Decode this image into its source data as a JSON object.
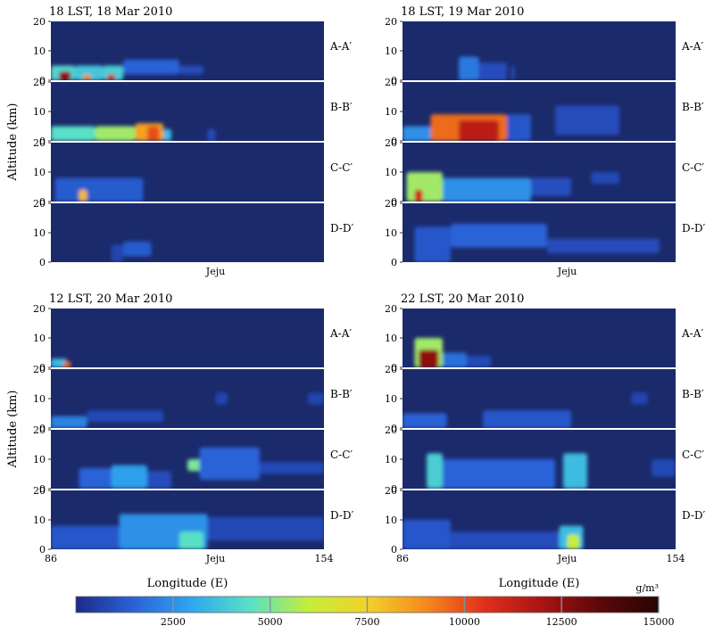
{
  "chart_data": {
    "type": "heatmap",
    "unit": "g/m³",
    "colorbar": {
      "ticks": [
        "2500",
        "5000",
        "7500",
        "10000",
        "12500",
        "15000"
      ],
      "range": [
        0,
        15000
      ],
      "colors": [
        "#1e2a8c",
        "#2a62d8",
        "#2fa8ee",
        "#59e0c6",
        "#c6ee3a",
        "#f2d22a",
        "#f48a1e",
        "#e0301c",
        "#a81414",
        "#5a0808",
        "#280404"
      ]
    },
    "x_axis": {
      "label": "Longitude (E)",
      "range": [
        86,
        154
      ],
      "ticks": [
        "86",
        "154"
      ],
      "annotation": "Jeju",
      "annotation_lon": 127
    },
    "y_axis": {
      "label": "Altitude (km)",
      "range": [
        0,
        20
      ],
      "ticks": [
        "0",
        "10",
        "20"
      ]
    },
    "background_color": "#1b2a6b",
    "cross_sections": [
      "A-A′",
      "B-B′",
      "C-C′",
      "D-D′"
    ],
    "panels": [
      {
        "title": "18 LST, 18 Mar 2010",
        "show_lon_ticks": false,
        "show_xlabel": false,
        "show_ylabel": true,
        "strips": [
          [
            {
              "lon": [
                86,
                92
              ],
              "alt": [
                0,
                5
              ],
              "conc": 4200
            },
            {
              "lon": [
                88,
                91
              ],
              "alt": [
                0,
                3
              ],
              "conc": 12500
            },
            {
              "lon": [
                92,
                99
              ],
              "alt": [
                0,
                5
              ],
              "conc": 3800
            },
            {
              "lon": [
                94,
                96
              ],
              "alt": [
                0,
                2
              ],
              "conc": 9000
            },
            {
              "lon": [
                99,
                104
              ],
              "alt": [
                0,
                5
              ],
              "conc": 4000
            },
            {
              "lon": [
                100,
                102
              ],
              "alt": [
                0,
                2
              ],
              "conc": 11000
            },
            {
              "lon": [
                104,
                118
              ],
              "alt": [
                2,
                7
              ],
              "conc": 1500
            },
            {
              "lon": [
                118,
                124
              ],
              "alt": [
                2,
                5
              ],
              "conc": 900
            }
          ],
          [
            {
              "lon": [
                86,
                97
              ],
              "alt": [
                0,
                5
              ],
              "conc": 4500
            },
            {
              "lon": [
                97,
                107
              ],
              "alt": [
                0,
                5
              ],
              "conc": 5500
            },
            {
              "lon": [
                107,
                114
              ],
              "alt": [
                0,
                6
              ],
              "conc": 8500
            },
            {
              "lon": [
                110,
                113
              ],
              "alt": [
                0,
                5
              ],
              "conc": 10000
            },
            {
              "lon": [
                114,
                116
              ],
              "alt": [
                0,
                4
              ],
              "conc": 3500
            },
            {
              "lon": [
                125,
                127
              ],
              "alt": [
                0,
                4
              ],
              "conc": 900
            }
          ],
          [
            {
              "lon": [
                87,
                109
              ],
              "alt": [
                0,
                8
              ],
              "conc": 1300
            },
            {
              "lon": [
                93,
                95
              ],
              "alt": [
                0,
                4
              ],
              "conc": 8000
            }
          ],
          [
            {
              "lon": [
                101,
                104
              ],
              "alt": [
                0,
                6
              ],
              "conc": 700
            },
            {
              "lon": [
                104,
                111
              ],
              "alt": [
                2,
                7
              ],
              "conc": 1300
            }
          ]
        ]
      },
      {
        "title": "18 LST, 19 Mar 2010",
        "show_lon_ticks": false,
        "show_xlabel": false,
        "show_ylabel": false,
        "strips": [
          [
            {
              "lon": [
                100,
                105
              ],
              "alt": [
                0,
                8
              ],
              "conc": 2000
            },
            {
              "lon": [
                105,
                112
              ],
              "alt": [
                0,
                6
              ],
              "conc": 900
            },
            {
              "lon": [
                113,
                114
              ],
              "alt": [
                0,
                5
              ],
              "conc": 700
            }
          ],
          [
            {
              "lon": [
                86,
                93
              ],
              "alt": [
                0,
                5
              ],
              "conc": 2500
            },
            {
              "lon": [
                93,
                112
              ],
              "alt": [
                0,
                9
              ],
              "conc": 9500
            },
            {
              "lon": [
                100,
                110
              ],
              "alt": [
                0,
                7
              ],
              "conc": 11500
            },
            {
              "lon": [
                112,
                118
              ],
              "alt": [
                0,
                9
              ],
              "conc": 1200
            },
            {
              "lon": [
                124,
                140
              ],
              "alt": [
                2,
                12
              ],
              "conc": 900
            }
          ],
          [
            {
              "lon": [
                87,
                96
              ],
              "alt": [
                0,
                10
              ],
              "conc": 5500
            },
            {
              "lon": [
                89,
                91
              ],
              "alt": [
                0,
                4
              ],
              "conc": 11000
            },
            {
              "lon": [
                96,
                118
              ],
              "alt": [
                0,
                8
              ],
              "conc": 2500
            },
            {
              "lon": [
                118,
                128
              ],
              "alt": [
                2,
                8
              ],
              "conc": 1000
            },
            {
              "lon": [
                133,
                140
              ],
              "alt": [
                6,
                10
              ],
              "conc": 800
            }
          ],
          [
            {
              "lon": [
                89,
                98
              ],
              "alt": [
                0,
                12
              ],
              "conc": 1200
            },
            {
              "lon": [
                98,
                122
              ],
              "alt": [
                5,
                13
              ],
              "conc": 1500
            },
            {
              "lon": [
                122,
                150
              ],
              "alt": [
                3,
                8
              ],
              "conc": 900
            }
          ]
        ]
      },
      {
        "title": "12 LST, 20 Mar 2010",
        "show_lon_ticks": true,
        "show_xlabel": true,
        "show_ylabel": true,
        "strips": [
          [
            {
              "lon": [
                86,
                90
              ],
              "alt": [
                0,
                3
              ],
              "conc": 3500
            },
            {
              "lon": [
                89,
                91
              ],
              "alt": [
                0,
                2
              ],
              "conc": 9500
            }
          ],
          [
            {
              "lon": [
                86,
                95
              ],
              "alt": [
                0,
                4
              ],
              "conc": 2200
            },
            {
              "lon": [
                95,
                114
              ],
              "alt": [
                2,
                6
              ],
              "conc": 800
            },
            {
              "lon": [
                127,
                130
              ],
              "alt": [
                8,
                12
              ],
              "conc": 700
            },
            {
              "lon": [
                150,
                154
              ],
              "alt": [
                8,
                12
              ],
              "conc": 700
            }
          ],
          [
            {
              "lon": [
                93,
                101
              ],
              "alt": [
                0,
                7
              ],
              "conc": 1500
            },
            {
              "lon": [
                101,
                110
              ],
              "alt": [
                0,
                8
              ],
              "conc": 2800
            },
            {
              "lon": [
                110,
                116
              ],
              "alt": [
                0,
                6
              ],
              "conc": 900
            },
            {
              "lon": [
                120,
                126
              ],
              "alt": [
                6,
                10
              ],
              "conc": 5000
            },
            {
              "lon": [
                123,
                138
              ],
              "alt": [
                3,
                14
              ],
              "conc": 1500
            },
            {
              "lon": [
                138,
                154
              ],
              "alt": [
                5,
                9
              ],
              "conc": 800
            }
          ],
          [
            {
              "lon": [
                86,
                103
              ],
              "alt": [
                0,
                8
              ],
              "conc": 1200
            },
            {
              "lon": [
                103,
                125
              ],
              "alt": [
                0,
                12
              ],
              "conc": 2500
            },
            {
              "lon": [
                118,
                124
              ],
              "alt": [
                0,
                6
              ],
              "conc": 4500
            },
            {
              "lon": [
                125,
                154
              ],
              "alt": [
                3,
                11
              ],
              "conc": 800
            }
          ]
        ]
      },
      {
        "title": "22 LST, 20 Mar 2010",
        "show_lon_ticks": true,
        "show_xlabel": true,
        "show_ylabel": false,
        "strips": [
          [
            {
              "lon": [
                89,
                96
              ],
              "alt": [
                0,
                10
              ],
              "conc": 5500
            },
            {
              "lon": [
                90,
                95
              ],
              "alt": [
                0,
                6
              ],
              "conc": 12500
            },
            {
              "lon": [
                96,
                102
              ],
              "alt": [
                0,
                5
              ],
              "conc": 1800
            },
            {
              "lon": [
                102,
                108
              ],
              "alt": [
                0,
                4
              ],
              "conc": 800
            }
          ],
          [
            {
              "lon": [
                86,
                97
              ],
              "alt": [
                0,
                5
              ],
              "conc": 1500
            },
            {
              "lon": [
                106,
                128
              ],
              "alt": [
                0,
                6
              ],
              "conc": 1200
            },
            {
              "lon": [
                143,
                147
              ],
              "alt": [
                8,
                12
              ],
              "conc": 700
            }
          ],
          [
            {
              "lon": [
                92,
                96
              ],
              "alt": [
                0,
                12
              ],
              "conc": 4000
            },
            {
              "lon": [
                96,
                124
              ],
              "alt": [
                0,
                10
              ],
              "conc": 1500
            },
            {
              "lon": [
                126,
                132
              ],
              "alt": [
                0,
                12
              ],
              "conc": 3500
            },
            {
              "lon": [
                148,
                154
              ],
              "alt": [
                4,
                10
              ],
              "conc": 800
            }
          ],
          [
            {
              "lon": [
                86,
                98
              ],
              "alt": [
                0,
                10
              ],
              "conc": 1200
            },
            {
              "lon": [
                98,
                125
              ],
              "alt": [
                0,
                6
              ],
              "conc": 900
            },
            {
              "lon": [
                125,
                131
              ],
              "alt": [
                0,
                8
              ],
              "conc": 3500
            },
            {
              "lon": [
                127,
                130
              ],
              "alt": [
                0,
                5
              ],
              "conc": 6000
            }
          ]
        ]
      }
    ]
  }
}
